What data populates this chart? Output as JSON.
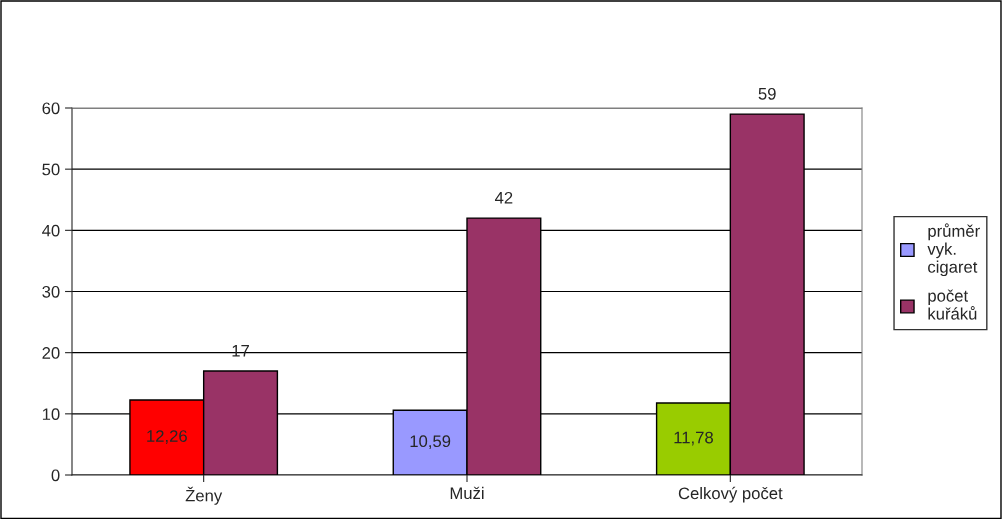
{
  "chart_data": {
    "type": "bar",
    "categories": [
      "Ženy",
      "Muži",
      "Celkový počet"
    ],
    "series": [
      {
        "name": "průměr vyk. cigaret",
        "color": "#9999ff",
        "colors": [
          "#ff0000",
          "#9999ff",
          "#99cc00"
        ],
        "values": [
          12.26,
          10.59,
          11.78
        ],
        "value_labels": [
          "12,26",
          "10,59",
          "11,78"
        ]
      },
      {
        "name": "počet kuřáků",
        "color": "#993366",
        "values": [
          17,
          42,
          59
        ],
        "value_labels": [
          "17",
          "42",
          "59"
        ]
      }
    ],
    "ylim": [
      0,
      60
    ],
    "yticks": [
      0,
      10,
      20,
      30,
      40,
      50,
      60
    ],
    "grid": "y",
    "legend": "right"
  }
}
